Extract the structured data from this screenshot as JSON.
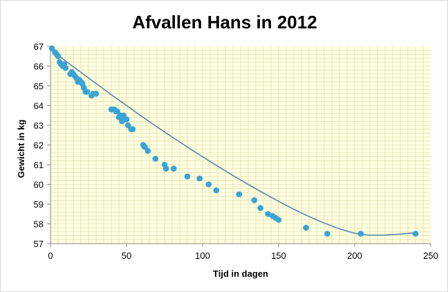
{
  "chart_data": {
    "type": "scatter",
    "title": "Afvallen Hans in 2012",
    "xlabel": "Tijd in dagen",
    "ylabel": "Gewicht in kg",
    "xlim": [
      0,
      250
    ],
    "ylim": [
      57,
      67
    ],
    "x_ticks": [
      0,
      50,
      100,
      150,
      200,
      250
    ],
    "y_ticks": [
      57,
      58,
      59,
      60,
      61,
      62,
      63,
      64,
      65,
      66,
      67
    ],
    "grid": true,
    "legend": "none",
    "colors": {
      "plot_background": "#FFFFE0",
      "gridline": "#D6D6A8",
      "marker": "#3BA3D4",
      "trendline": "#5A86B0"
    },
    "series": [
      {
        "marker": "circle",
        "points": [
          [
            1,
            66.9
          ],
          [
            3,
            66.7
          ],
          [
            4,
            66.6
          ],
          [
            5,
            66.5
          ],
          [
            6,
            66.2
          ],
          [
            7,
            66.1
          ],
          [
            8,
            66.0
          ],
          [
            9,
            66.1
          ],
          [
            10,
            65.9
          ],
          [
            13,
            65.6
          ],
          [
            14,
            65.7
          ],
          [
            15,
            65.6
          ],
          [
            16,
            65.5
          ],
          [
            17,
            65.4
          ],
          [
            18,
            65.2
          ],
          [
            19,
            65.3
          ],
          [
            20,
            65.2
          ],
          [
            21,
            65.1
          ],
          [
            22,
            64.9
          ],
          [
            23,
            64.7
          ],
          [
            24,
            64.7
          ],
          [
            27,
            64.5
          ],
          [
            28,
            64.6
          ],
          [
            30,
            64.6
          ],
          [
            40,
            63.8
          ],
          [
            42,
            63.8
          ],
          [
            43,
            63.7
          ],
          [
            44,
            63.7
          ],
          [
            45,
            63.4
          ],
          [
            46,
            63.5
          ],
          [
            47,
            63.2
          ],
          [
            48,
            63.5
          ],
          [
            49,
            63.3
          ],
          [
            50,
            63.3
          ],
          [
            51,
            63.0
          ],
          [
            53,
            62.8
          ],
          [
            54,
            62.8
          ],
          [
            61,
            62.0
          ],
          [
            62,
            61.9
          ],
          [
            64,
            61.7
          ],
          [
            69,
            61.3
          ],
          [
            75,
            61.0
          ],
          [
            76,
            60.8
          ],
          [
            81,
            60.8
          ],
          [
            90,
            60.4
          ],
          [
            98,
            60.3
          ],
          [
            104,
            60.0
          ],
          [
            109,
            59.7
          ],
          [
            124,
            59.5
          ],
          [
            134,
            59.2
          ],
          [
            138,
            58.8
          ],
          [
            143,
            58.5
          ],
          [
            146,
            58.4
          ],
          [
            148,
            58.3
          ],
          [
            150,
            58.2
          ],
          [
            168,
            57.8
          ],
          [
            182,
            57.5
          ],
          [
            204,
            57.5
          ],
          [
            240,
            57.5
          ]
        ]
      }
    ],
    "trendline": {
      "type": "polynomial",
      "x": [
        0,
        10,
        20,
        30,
        40,
        50,
        60,
        70,
        80,
        90,
        100,
        110,
        120,
        130,
        140,
        150,
        160,
        170,
        180,
        190,
        200,
        210,
        220,
        230,
        240
      ],
      "y": [
        66.85,
        66.26,
        65.68,
        65.12,
        64.55,
        64.0,
        63.45,
        62.92,
        62.4,
        61.9,
        61.4,
        60.92,
        60.45,
        60.0,
        59.56,
        59.14,
        58.74,
        58.37,
        58.04,
        57.75,
        57.52,
        57.42,
        57.43,
        57.48,
        57.55
      ]
    }
  }
}
